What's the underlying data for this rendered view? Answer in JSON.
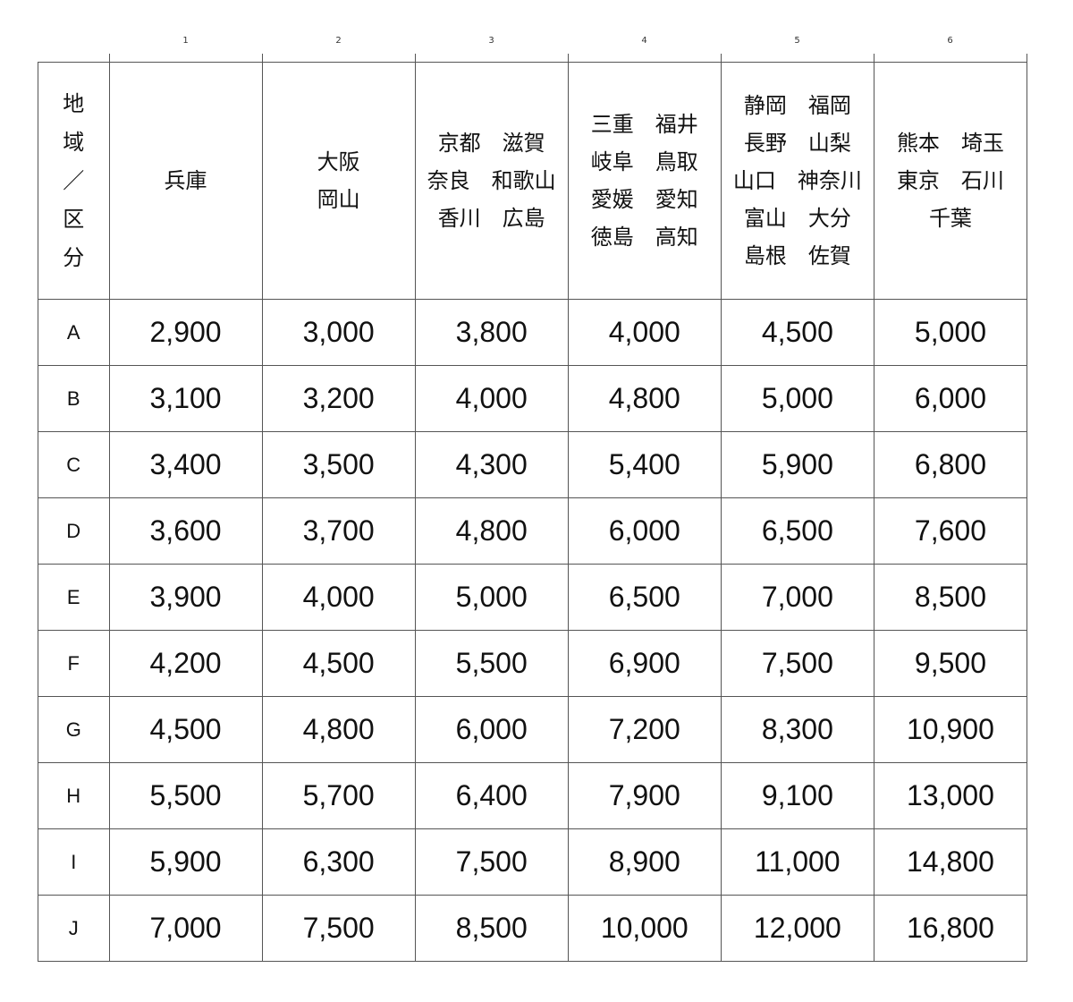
{
  "column_numbers": [
    "1",
    "2",
    "3",
    "4",
    "5",
    "6"
  ],
  "corner_header": [
    "地",
    "域",
    "／",
    "区",
    "分"
  ],
  "region_headers": [
    [
      "兵庫"
    ],
    [
      "大阪",
      "岡山"
    ],
    [
      "京都　滋賀",
      "奈良　和歌山",
      "香川　広島"
    ],
    [
      "三重　福井",
      "岐阜　鳥取",
      "愛媛　愛知",
      "徳島　高知"
    ],
    [
      "静岡　福岡",
      "長野　山梨",
      "山口　神奈川",
      "富山　大分",
      "島根　佐賀"
    ],
    [
      "熊本　埼玉",
      "東京　石川",
      "千葉"
    ]
  ],
  "rows": [
    {
      "label": "A",
      "values": [
        "2,900",
        "3,000",
        "3,800",
        "4,000",
        "4,500",
        "5,000"
      ]
    },
    {
      "label": "B",
      "values": [
        "3,100",
        "3,200",
        "4,000",
        "4,800",
        "5,000",
        "6,000"
      ]
    },
    {
      "label": "C",
      "values": [
        "3,400",
        "3,500",
        "4,300",
        "5,400",
        "5,900",
        "6,800"
      ]
    },
    {
      "label": "D",
      "values": [
        "3,600",
        "3,700",
        "4,800",
        "6,000",
        "6,500",
        "7,600"
      ]
    },
    {
      "label": "E",
      "values": [
        "3,900",
        "4,000",
        "5,000",
        "6,500",
        "7,000",
        "8,500"
      ]
    },
    {
      "label": "F",
      "values": [
        "4,200",
        "4,500",
        "5,500",
        "6,900",
        "7,500",
        "9,500"
      ]
    },
    {
      "label": "G",
      "values": [
        "4,500",
        "4,800",
        "6,000",
        "7,200",
        "8,300",
        "10,900"
      ]
    },
    {
      "label": "H",
      "values": [
        "5,500",
        "5,700",
        "6,400",
        "7,900",
        "9,100",
        "13,000"
      ]
    },
    {
      "label": "I",
      "values": [
        "5,900",
        "6,300",
        "7,500",
        "8,900",
        "11,000",
        "14,800"
      ]
    },
    {
      "label": "J",
      "values": [
        "7,000",
        "7,500",
        "8,500",
        "10,000",
        "12,000",
        "16,800"
      ]
    }
  ]
}
